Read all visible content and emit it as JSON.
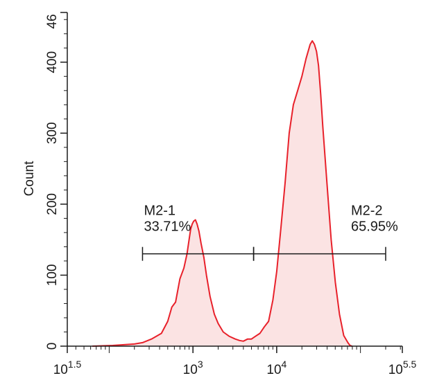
{
  "chart_data": {
    "type": "area",
    "ylabel": "Count",
    "xlabel": "",
    "x_scale": "log10",
    "xlim": [
      31.6,
      316228
    ],
    "ylim": [
      0,
      470
    ],
    "y_ticks": [
      0,
      100,
      200,
      300,
      400
    ],
    "y_tick_labels": [
      "0",
      "100",
      "200",
      "300",
      "400"
    ],
    "y_top_label": "46",
    "x_ticks": [
      {
        "value": 31.6,
        "base": "10",
        "exp": "1.5"
      },
      {
        "value": 1000,
        "base": "10",
        "exp": "3"
      },
      {
        "value": 10000,
        "base": "10",
        "exp": "4"
      },
      {
        "value": 316228,
        "base": "10",
        "exp": "5.5"
      }
    ],
    "series": [
      {
        "color": "#e8202a",
        "fill": "#fbe3e3",
        "x": [
          63,
          110,
          200,
          250,
          320,
          420,
          500,
          560,
          620,
          700,
          780,
          850,
          900,
          940,
          980,
          1020,
          1070,
          1120,
          1180,
          1250,
          1350,
          1450,
          1600,
          1800,
          2000,
          2300,
          2700,
          3200,
          3600,
          4000,
          4500,
          5000,
          5600,
          6300,
          7100,
          8000,
          9000,
          10000,
          11200,
          12600,
          14100,
          15800,
          17800,
          20000,
          22400,
          25100,
          26600,
          28200,
          29900,
          31600,
          33500,
          35500,
          39800,
          44700,
          50100,
          56200,
          63100,
          70800,
          75000,
          79400
        ],
        "y": [
          0,
          1,
          3,
          5,
          10,
          18,
          35,
          55,
          62,
          95,
          110,
          130,
          150,
          165,
          172,
          176,
          178,
          172,
          162,
          145,
          125,
          100,
          70,
          45,
          32,
          20,
          14,
          10,
          8,
          7,
          10,
          10,
          14,
          18,
          27,
          35,
          65,
          105,
          165,
          230,
          300,
          340,
          360,
          380,
          405,
          425,
          430,
          425,
          415,
          395,
          355,
          310,
          230,
          150,
          90,
          45,
          15,
          5,
          1,
          0
        ]
      }
    ],
    "gates": [
      {
        "name": "M2-1",
        "percent": "33.71%",
        "x_start": 250,
        "x_end": 5300,
        "y": 130
      },
      {
        "name": "M2-2",
        "percent": "65.95%",
        "x_start": 5300,
        "x_end": 200000,
        "y": 130
      }
    ]
  }
}
